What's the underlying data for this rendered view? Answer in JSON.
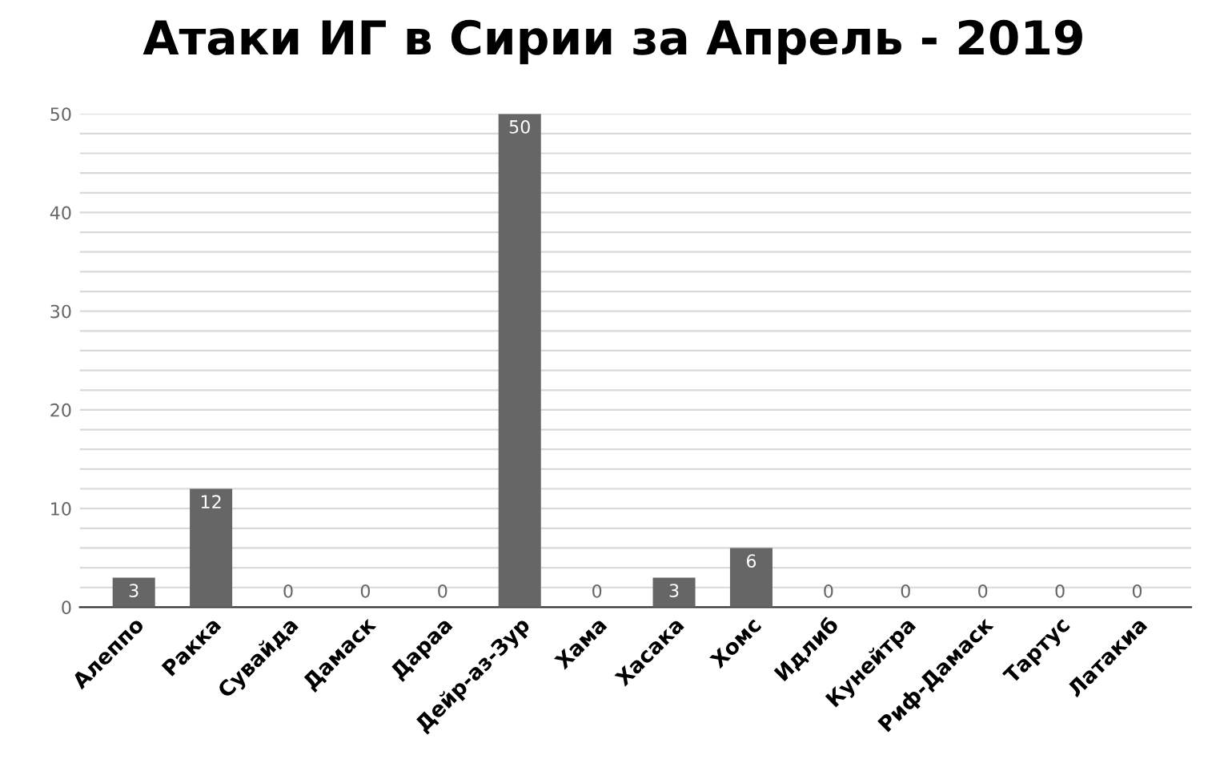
{
  "chart_data": {
    "type": "bar",
    "title": "Атаки ИГ в Сирии за Апрель - 2019",
    "categories": [
      "Алеппо",
      "Ракка",
      "Сувайда",
      "Дамаск",
      "Дараа",
      "Дейр-аз-Зур",
      "Хама",
      "Хасака",
      "Хомс",
      "Идлиб",
      "Кунейтра",
      "Риф-Дамаск",
      "Тартус",
      "Латакиа"
    ],
    "values": [
      3,
      12,
      0,
      0,
      0,
      50,
      0,
      3,
      6,
      0,
      0,
      0,
      0,
      0
    ],
    "color": "#666666",
    "ylim": [
      0,
      50
    ],
    "yticks": [
      0,
      {
        "value": 2,
        "label": null
      },
      {
        "value": 4,
        "label": null
      },
      {
        "value": 6,
        "label": null
      },
      {
        "value": 8,
        "label": null
      },
      10,
      {
        "value": 12,
        "label": null
      },
      {
        "value": 14,
        "label": null
      },
      {
        "value": 16,
        "label": null
      },
      {
        "value": 18,
        "label": null
      },
      20,
      {
        "value": 22,
        "label": null
      },
      {
        "value": 24,
        "label": null
      },
      {
        "value": 26,
        "label": null
      },
      {
        "value": 28,
        "label": null
      },
      30,
      {
        "value": 32,
        "label": null
      },
      {
        "value": 34,
        "label": null
      },
      {
        "value": 36,
        "label": null
      },
      {
        "value": 38,
        "label": null
      },
      40,
      {
        "value": 42,
        "label": null
      },
      {
        "value": 44,
        "label": null
      },
      {
        "value": 46,
        "label": null
      },
      {
        "value": 48,
        "label": null
      },
      50
    ],
    "grid": "y",
    "data_labels": true,
    "legend": false
  }
}
